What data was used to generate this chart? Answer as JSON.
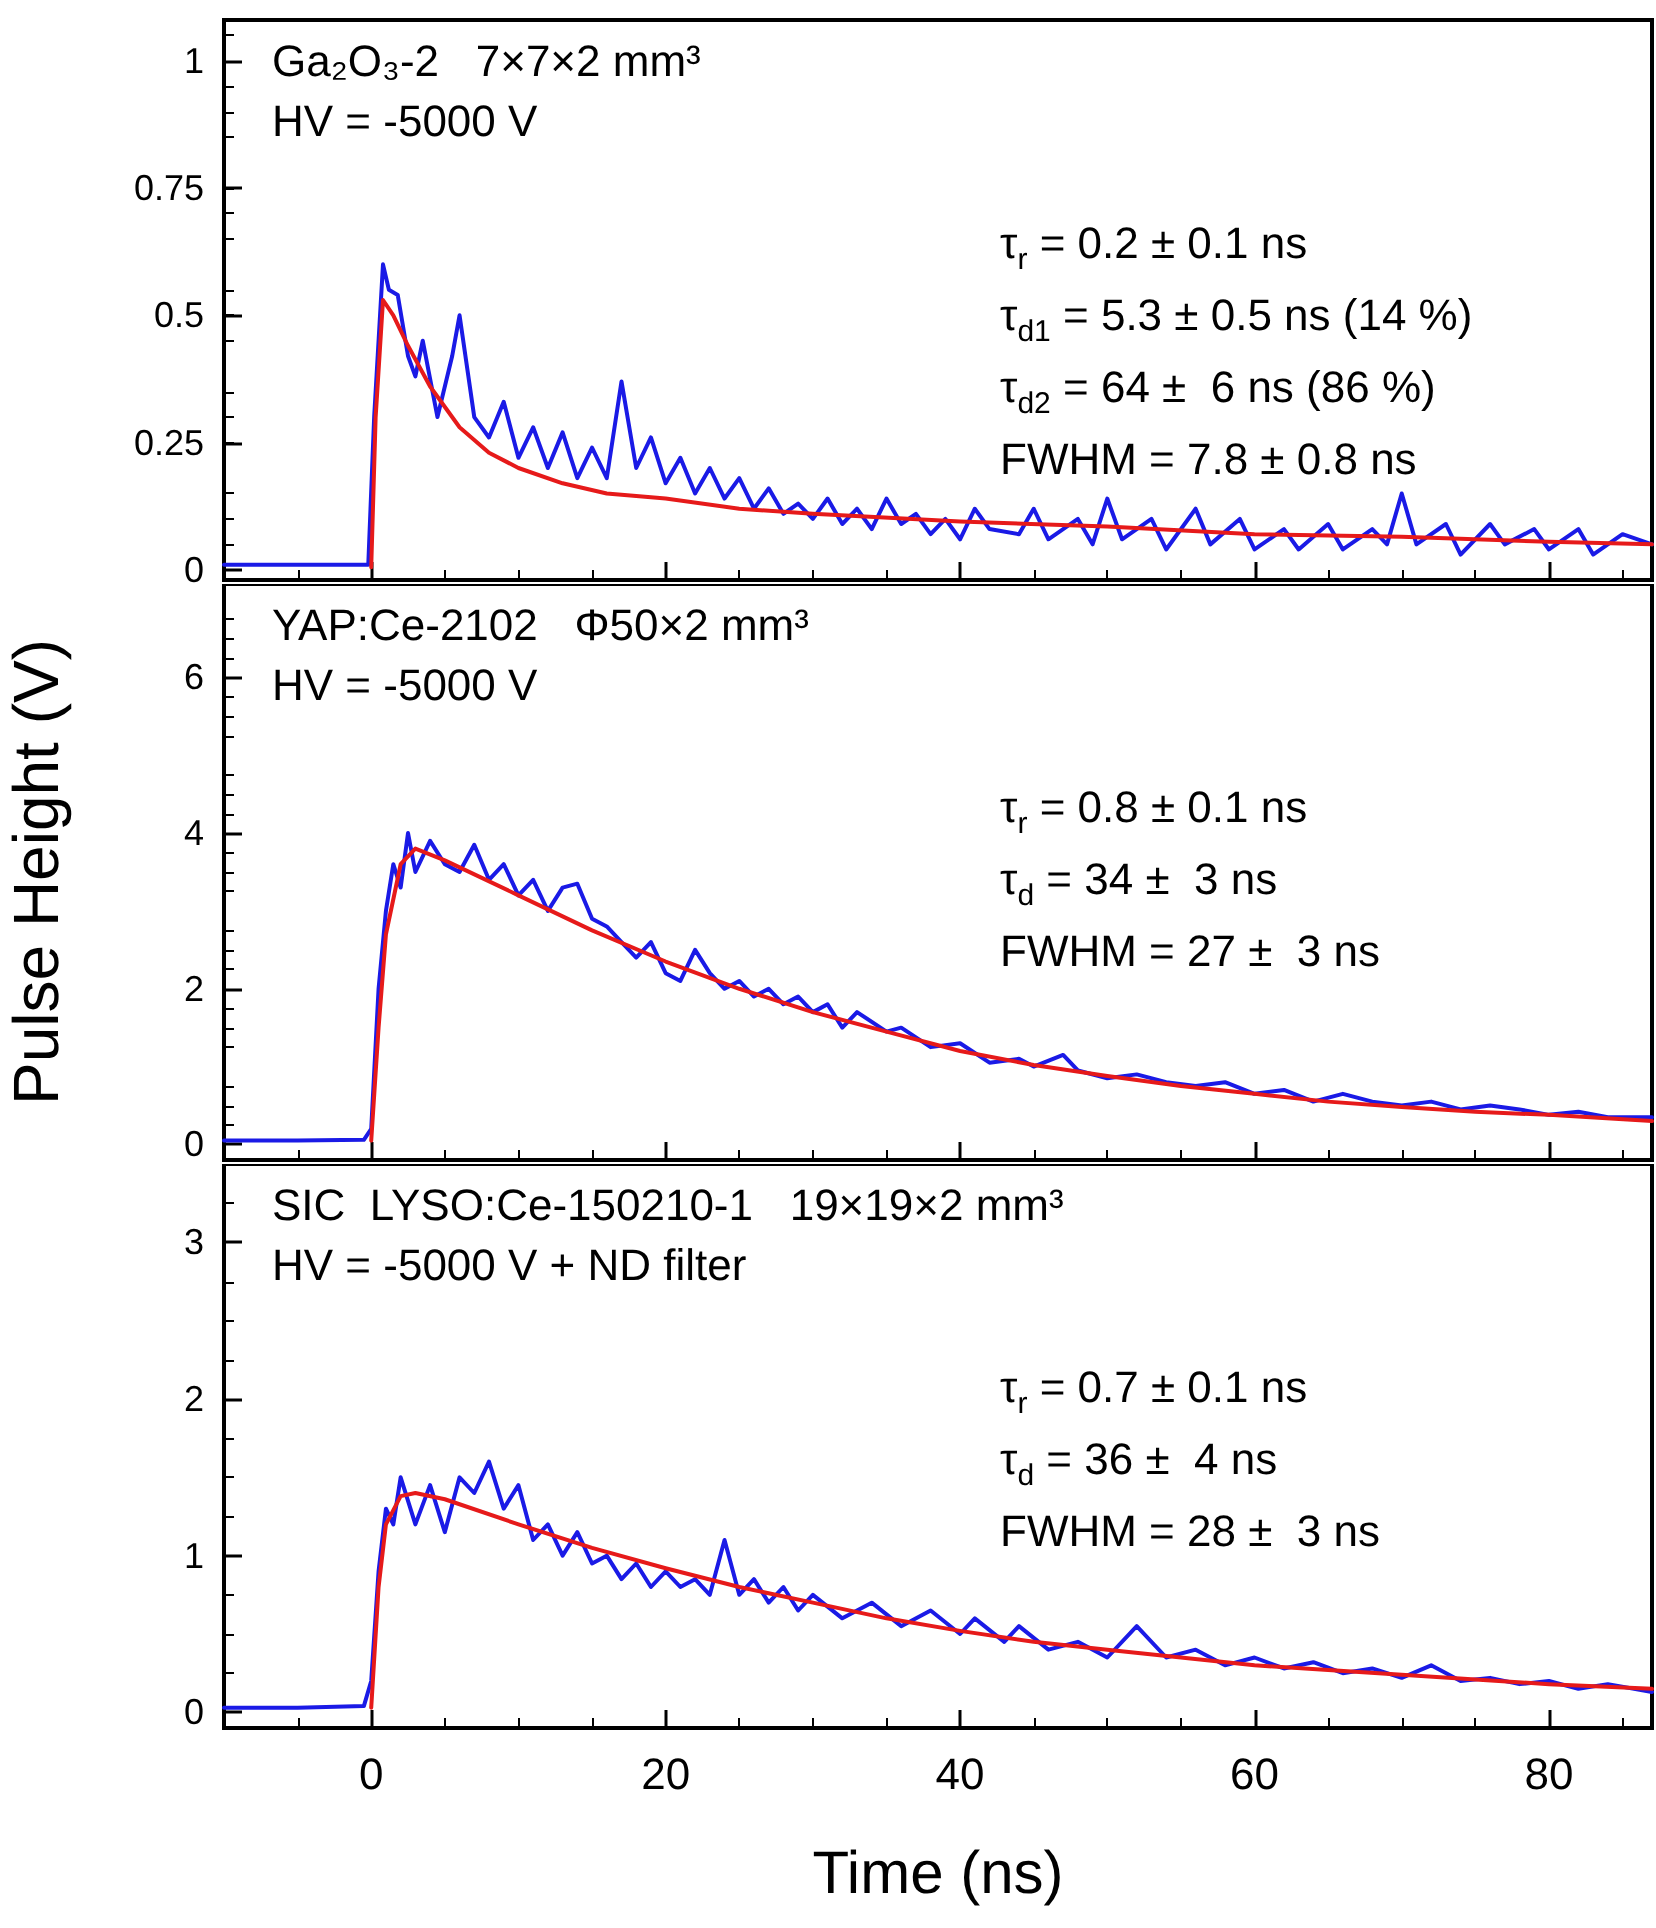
{
  "chart_data": [
    {
      "type": "line",
      "xlim": [
        -10,
        87
      ],
      "xticks": [
        0,
        20,
        40,
        60,
        80
      ],
      "ylim": [
        -0.02,
        1.08
      ],
      "yticks": [
        0,
        0.25,
        0.5,
        0.75,
        1
      ],
      "tick_labels": "y",
      "grid": false,
      "marker": "none",
      "line_style": "solid",
      "annotations": [
        "Ga₂O₃-2   7×7×2 mm³\nHV = -5000 V",
        "τ$_{r}$ = 0.2 ± 0.1 ns",
        "τ$_{d1}$ = 5.3 ± 0.5 ns (14 %)",
        "τ$_{d2}$ = 64 ±  6 ns (86 %)",
        "FWHM = 7.8 ± 0.8 ns"
      ],
      "series": [
        {
          "color": "#1a1ae6",
          "x": [
            -10,
            -5,
            -0.2,
            0.2,
            0.8,
            1.2,
            1.8,
            2.5,
            3,
            3.5,
            4.5,
            5.5,
            6,
            7,
            8,
            9,
            10,
            11,
            12,
            13,
            14,
            15,
            16,
            17,
            18,
            19,
            20,
            21,
            22,
            23,
            24,
            25,
            26,
            27,
            28,
            29,
            30,
            31,
            32,
            33,
            34,
            35,
            36,
            37,
            38,
            39,
            40,
            41,
            42,
            44,
            45,
            46,
            48,
            49,
            50,
            51,
            53,
            54,
            56,
            57,
            59,
            60,
            62,
            63,
            65,
            66,
            68,
            69,
            70,
            71,
            73,
            74,
            76,
            77,
            79,
            80,
            82,
            83,
            85,
            87
          ],
          "values": [
            0.01,
            0.01,
            0.01,
            0.3,
            0.6,
            0.55,
            0.54,
            0.42,
            0.38,
            0.45,
            0.3,
            0.42,
            0.5,
            0.3,
            0.26,
            0.33,
            0.22,
            0.28,
            0.2,
            0.27,
            0.18,
            0.24,
            0.18,
            0.37,
            0.2,
            0.26,
            0.17,
            0.22,
            0.15,
            0.2,
            0.14,
            0.18,
            0.12,
            0.16,
            0.11,
            0.13,
            0.1,
            0.14,
            0.09,
            0.12,
            0.08,
            0.14,
            0.09,
            0.11,
            0.07,
            0.1,
            0.06,
            0.12,
            0.08,
            0.07,
            0.12,
            0.06,
            0.1,
            0.05,
            0.14,
            0.06,
            0.1,
            0.04,
            0.12,
            0.05,
            0.1,
            0.04,
            0.08,
            0.04,
            0.09,
            0.04,
            0.08,
            0.05,
            0.15,
            0.05,
            0.09,
            0.03,
            0.09,
            0.05,
            0.08,
            0.04,
            0.08,
            0.03,
            0.07,
            0.05
          ]
        },
        {
          "color": "#e61a1a",
          "x": [
            0,
            0.3,
            0.8,
            1.5,
            2.5,
            4,
            6,
            8,
            10,
            13,
            16,
            20,
            25,
            30,
            40,
            50,
            60,
            70,
            80,
            87
          ],
          "values": [
            0.005,
            0.3,
            0.53,
            0.5,
            0.44,
            0.36,
            0.28,
            0.23,
            0.2,
            0.17,
            0.15,
            0.14,
            0.12,
            0.11,
            0.095,
            0.085,
            0.07,
            0.065,
            0.055,
            0.05
          ]
        }
      ]
    },
    {
      "type": "line",
      "ylabel": "Pulse Height (V)",
      "xlim": [
        -10,
        87
      ],
      "xticks": [
        0,
        20,
        40,
        60,
        80
      ],
      "ylim": [
        -0.2,
        7.2
      ],
      "yticks": [
        0,
        2,
        4,
        6
      ],
      "tick_labels": "y",
      "grid": false,
      "marker": "none",
      "line_style": "solid",
      "annotations": [
        "YAP:Ce-2102   Φ50×2 mm³\nHV = -5000 V",
        "τ$_{r}$ = 0.8 ± 0.1 ns",
        "τ$_{d}$ = 34 ±  3 ns",
        "FWHM = 27 ±  3 ns"
      ],
      "series": [
        {
          "color": "#1a1ae6",
          "x": [
            -10,
            -5,
            -0.5,
            0,
            0.5,
            1,
            1.5,
            2,
            2.5,
            3,
            4,
            5,
            6,
            7,
            8,
            9,
            10,
            11,
            12,
            13,
            14,
            15,
            16,
            17,
            18,
            19,
            20,
            21,
            22,
            23,
            24,
            25,
            26,
            27,
            28,
            29,
            30,
            31,
            32,
            33,
            35,
            36,
            38,
            40,
            42,
            44,
            45,
            47,
            48,
            50,
            52,
            54,
            56,
            58,
            60,
            62,
            64,
            66,
            68,
            70,
            72,
            74,
            76,
            78,
            80,
            82,
            84,
            87
          ],
          "values": [
            0.05,
            0.05,
            0.06,
            0.2,
            2.0,
            3.0,
            3.6,
            3.3,
            4.0,
            3.5,
            3.9,
            3.6,
            3.5,
            3.85,
            3.4,
            3.6,
            3.2,
            3.4,
            3.0,
            3.3,
            3.35,
            2.9,
            2.8,
            2.6,
            2.4,
            2.6,
            2.2,
            2.1,
            2.5,
            2.2,
            2.0,
            2.1,
            1.9,
            2.0,
            1.8,
            1.9,
            1.7,
            1.8,
            1.5,
            1.7,
            1.45,
            1.5,
            1.25,
            1.3,
            1.05,
            1.1,
            1.0,
            1.15,
            0.95,
            0.85,
            0.9,
            0.8,
            0.75,
            0.8,
            0.65,
            0.7,
            0.55,
            0.65,
            0.55,
            0.5,
            0.55,
            0.45,
            0.5,
            0.45,
            0.38,
            0.42,
            0.35,
            0.35
          ]
        },
        {
          "color": "#e61a1a",
          "x": [
            0,
            0.5,
            1,
            2,
            3,
            5,
            10,
            15,
            20,
            25,
            30,
            35,
            40,
            45,
            50,
            55,
            60,
            65,
            70,
            75,
            80,
            87
          ],
          "values": [
            0.05,
            1.5,
            2.7,
            3.6,
            3.8,
            3.65,
            3.2,
            2.75,
            2.35,
            2.0,
            1.7,
            1.45,
            1.2,
            1.02,
            0.88,
            0.75,
            0.65,
            0.55,
            0.48,
            0.42,
            0.38,
            0.3
          ]
        }
      ]
    },
    {
      "type": "line",
      "xlabel": "Time (ns)",
      "xlim": [
        -10,
        87
      ],
      "xticks": [
        0,
        20,
        40,
        60,
        80
      ],
      "ylim": [
        -0.1,
        3.5
      ],
      "yticks": [
        0,
        1,
        2,
        3
      ],
      "grid": false,
      "marker": "none",
      "line_style": "solid",
      "annotations": [
        "SIC  LYSO:Ce-150210-1   19×19×2 mm³\nHV = -5000 V + ND filter",
        "τ$_{r}$ = 0.7 ± 0.1 ns",
        "τ$_{d}$ = 36 ±  4 ns",
        "FWHM = 28 ±  3 ns"
      ],
      "series": [
        {
          "color": "#1a1ae6",
          "x": [
            -10,
            -5,
            -0.5,
            0,
            0.5,
            1,
            1.5,
            2,
            3,
            4,
            5,
            6,
            7,
            8,
            9,
            10,
            11,
            12,
            13,
            14,
            15,
            16,
            17,
            18,
            19,
            20,
            21,
            22,
            23,
            24,
            25,
            26,
            27,
            28,
            29,
            30,
            32,
            34,
            36,
            38,
            40,
            41,
            43,
            44,
            46,
            48,
            50,
            52,
            54,
            56,
            58,
            60,
            62,
            64,
            66,
            68,
            70,
            72,
            74,
            76,
            78,
            80,
            82,
            84,
            87
          ],
          "values": [
            0.03,
            0.03,
            0.04,
            0.2,
            0.9,
            1.3,
            1.2,
            1.5,
            1.2,
            1.45,
            1.15,
            1.5,
            1.4,
            1.6,
            1.3,
            1.45,
            1.1,
            1.2,
            1.0,
            1.15,
            0.95,
            1.0,
            0.85,
            0.95,
            0.8,
            0.9,
            0.8,
            0.85,
            0.75,
            1.1,
            0.75,
            0.85,
            0.7,
            0.8,
            0.65,
            0.75,
            0.6,
            0.7,
            0.55,
            0.65,
            0.5,
            0.6,
            0.45,
            0.55,
            0.4,
            0.45,
            0.35,
            0.55,
            0.35,
            0.4,
            0.3,
            0.35,
            0.28,
            0.32,
            0.25,
            0.28,
            0.22,
            0.3,
            0.2,
            0.22,
            0.18,
            0.2,
            0.15,
            0.18,
            0.13
          ]
        },
        {
          "color": "#e61a1a",
          "x": [
            0,
            0.5,
            1,
            2,
            3,
            5,
            10,
            15,
            20,
            25,
            30,
            35,
            40,
            45,
            50,
            55,
            60,
            65,
            70,
            75,
            80,
            87
          ],
          "values": [
            0.03,
            0.8,
            1.2,
            1.38,
            1.4,
            1.36,
            1.2,
            1.05,
            0.92,
            0.8,
            0.7,
            0.6,
            0.52,
            0.45,
            0.4,
            0.35,
            0.3,
            0.27,
            0.24,
            0.21,
            0.18,
            0.15
          ]
        }
      ]
    }
  ]
}
